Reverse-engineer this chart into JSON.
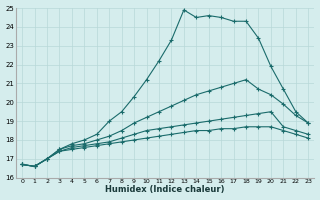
{
  "xlabel": "Humidex (Indice chaleur)",
  "xlim": [
    -0.5,
    23.5
  ],
  "ylim": [
    16,
    25
  ],
  "yticks": [
    16,
    17,
    18,
    19,
    20,
    21,
    22,
    23,
    24,
    25
  ],
  "xticks": [
    0,
    1,
    2,
    3,
    4,
    5,
    6,
    7,
    8,
    9,
    10,
    11,
    12,
    13,
    14,
    15,
    16,
    17,
    18,
    19,
    20,
    21,
    22,
    23
  ],
  "bg_color": "#d5eded",
  "line_color": "#1a6b6b",
  "grid_color": "#b8d8d8",
  "series": [
    {
      "x": [
        0,
        1,
        2,
        3,
        4,
        5,
        6,
        7,
        8,
        9,
        10,
        11,
        12,
        13,
        14,
        15,
        16,
        17,
        18,
        19,
        20,
        21,
        22,
        23
      ],
      "y": [
        16.7,
        16.6,
        17.0,
        17.5,
        17.8,
        18.0,
        18.3,
        19.0,
        19.5,
        20.3,
        21.2,
        22.2,
        23.3,
        24.9,
        24.5,
        24.6,
        24.5,
        24.3,
        24.3,
        23.4,
        21.9,
        20.7,
        19.5,
        18.9
      ]
    },
    {
      "x": [
        0,
        1,
        2,
        3,
        4,
        5,
        6,
        7,
        8,
        9,
        10,
        11,
        12,
        13,
        14,
        15,
        16,
        17,
        18,
        19,
        20,
        21,
        22,
        23
      ],
      "y": [
        16.7,
        16.6,
        17.0,
        17.5,
        17.7,
        17.8,
        18.0,
        18.2,
        18.5,
        18.9,
        19.2,
        19.5,
        19.8,
        20.1,
        20.4,
        20.6,
        20.8,
        21.0,
        21.2,
        20.7,
        20.4,
        19.9,
        19.3,
        18.9
      ]
    },
    {
      "x": [
        0,
        1,
        2,
        3,
        4,
        5,
        6,
        7,
        8,
        9,
        10,
        11,
        12,
        13,
        14,
        15,
        16,
        17,
        18,
        19,
        20,
        21,
        22,
        23
      ],
      "y": [
        16.7,
        16.6,
        17.0,
        17.4,
        17.6,
        17.7,
        17.8,
        17.9,
        18.1,
        18.3,
        18.5,
        18.6,
        18.7,
        18.8,
        18.9,
        19.0,
        19.1,
        19.2,
        19.3,
        19.4,
        19.5,
        18.7,
        18.5,
        18.3
      ]
    },
    {
      "x": [
        0,
        1,
        2,
        3,
        4,
        5,
        6,
        7,
        8,
        9,
        10,
        11,
        12,
        13,
        14,
        15,
        16,
        17,
        18,
        19,
        20,
        21,
        22,
        23
      ],
      "y": [
        16.7,
        16.6,
        17.0,
        17.4,
        17.5,
        17.6,
        17.7,
        17.8,
        17.9,
        18.0,
        18.1,
        18.2,
        18.3,
        18.4,
        18.5,
        18.5,
        18.6,
        18.6,
        18.7,
        18.7,
        18.7,
        18.5,
        18.3,
        18.1
      ]
    }
  ]
}
